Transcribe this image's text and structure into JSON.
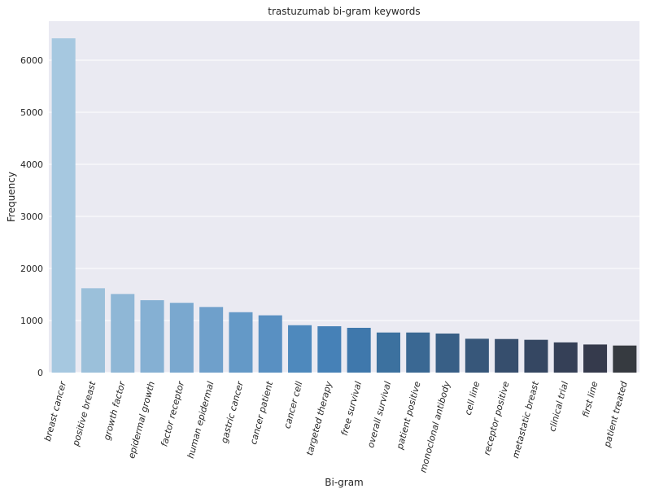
{
  "chart_data": {
    "type": "bar",
    "title": "trastuzumab bi-gram keywords",
    "xlabel": "Bi-gram",
    "ylabel": "Frequency",
    "ylim": [
      0,
      6750
    ],
    "yticks": [
      "0",
      "1000",
      "2000",
      "3000",
      "4000",
      "5000",
      "6000"
    ],
    "grid": true,
    "categories": [
      "breast cancer",
      "positive breast",
      "growth factor",
      "epidermal growth",
      "factor receptor",
      "human epidermal",
      "gastric cancer",
      "cancer patient",
      "cancer cell",
      "targeted therapy",
      "free survival",
      "overall survival",
      "patient positive",
      "monoclonal antibody",
      "cell line",
      "receptor positive",
      "metastatic breast",
      "clinical trial",
      "first line",
      "patient treated"
    ],
    "values": [
      6420,
      1620,
      1510,
      1390,
      1340,
      1260,
      1160,
      1100,
      910,
      890,
      860,
      770,
      770,
      750,
      650,
      645,
      630,
      580,
      540,
      520
    ],
    "colors": [
      "#a6c8e0",
      "#9bc0da",
      "#8fb7d6",
      "#85b0d3",
      "#7aa8cf",
      "#6fa0cb",
      "#6499c7",
      "#5990c2",
      "#4e89bd",
      "#4681b7",
      "#3f78ac",
      "#3c719f",
      "#3a6893",
      "#385f86",
      "#37577a",
      "#364e6d",
      "#354762",
      "#354057",
      "#353a4c",
      "#363a40"
    ]
  }
}
